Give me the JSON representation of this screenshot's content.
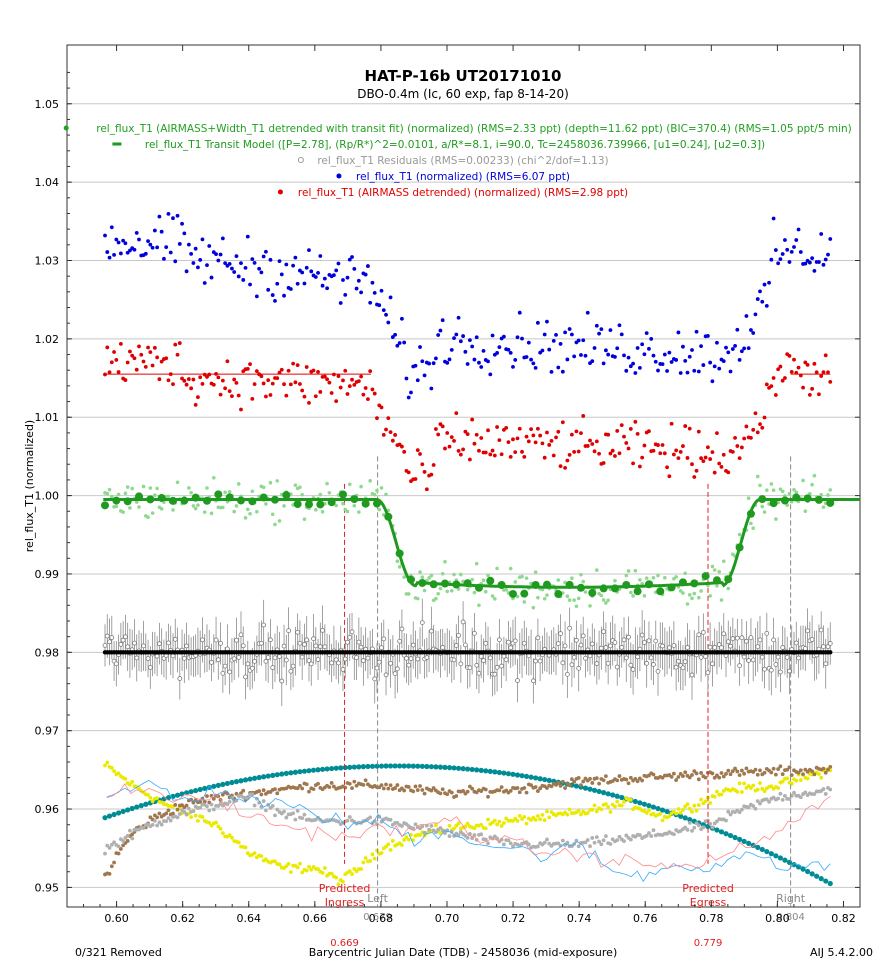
{
  "chart_data": {
    "type": "scatter",
    "title": "HAT-P-16b UT20171010",
    "subtitle": "DBO-0.4m (Ic, 60 exp, fap 8-14-20)",
    "xlabel": "Barycentric Julian Date (TDB) - 2458036 (mid-exposure)",
    "ylabel": "rel_flux_T1 (normalized)",
    "xlim": [
      0.585,
      0.825
    ],
    "ylim": [
      0.9475,
      1.0575
    ],
    "x_ticks": [
      0.6,
      0.62,
      0.64,
      0.66,
      0.68,
      0.7,
      0.72,
      0.74,
      0.76,
      0.78,
      0.8,
      0.82
    ],
    "x_tick_labels": [
      "0.60",
      "0.62",
      "0.64",
      "0.66",
      "0.68",
      "0.70",
      "0.72",
      "0.74",
      "0.76",
      "0.78",
      "0.80",
      "0.82"
    ],
    "y_ticks": [
      0.95,
      0.96,
      0.97,
      0.98,
      0.99,
      1.0,
      1.01,
      1.02,
      1.03,
      1.04,
      1.05
    ],
    "y_tick_labels": [
      "0.95",
      "0.96",
      "0.97",
      "0.98",
      "0.99",
      "1.00",
      "1.01",
      "1.02",
      "1.03",
      "1.04",
      "1.05"
    ],
    "grid": "horizontal",
    "legend": [
      {
        "label": "rel_flux_T1 (AIRMASS+Width_T1 detrended with transit fit) (normalized) (RMS=2.33 ppt) (depth=11.62 ppt) (BIC=370.4) (RMS=1.05 ppt/5 min)",
        "color": "#22a022",
        "marker": "dot"
      },
      {
        "label": "rel_flux_T1 Transit Model ([P=2.78], (Rp/R*)^2=0.0101, a/R*=8.1, i=90.0, Tc=2458036.739966, [u1=0.24], [u2=0.3])",
        "color": "#1f9a1f",
        "marker": "dash"
      },
      {
        "label": "rel_flux_T1 Residuals (RMS=0.00233) (chi^2/dof=1.13)",
        "color": "#999999",
        "marker": "circle"
      },
      {
        "label": "rel_flux_T1 (normalized) (RMS=6.07 ppt)",
        "color": "#0000dd",
        "marker": "dot"
      },
      {
        "label": "rel_flux_T1 (AIRMASS detrended) (normalized) (RMS=2.98 ppt)",
        "color": "#e00000",
        "marker": "dot"
      }
    ],
    "transit_model": {
      "name": "rel_flux_T1 Transit Model",
      "t0": 0.67875,
      "t1": 0.6905,
      "t4": 0.79475,
      "t3": 0.78325,
      "baseline": 0.9995,
      "depth": 0.011
    },
    "blue_series": {
      "name": "rel_flux_T1 (normalized)",
      "noise": 0.004,
      "segments": [
        {
          "x": [
            0.5965,
            0.6205
          ],
          "y": [
            1.0325,
            1.032
          ]
        },
        {
          "x": [
            0.6205,
            0.677
          ],
          "y": [
            1.0305,
            1.027
          ]
        },
        {
          "x": [
            0.677,
            0.688
          ],
          "y": [
            1.027,
            1.017
          ]
        },
        {
          "x": [
            0.688,
            0.696
          ],
          "y": [
            1.0155,
            1.0165
          ]
        },
        {
          "x": [
            0.696,
            0.785
          ],
          "y": [
            1.02,
            1.018
          ]
        },
        {
          "x": [
            0.785,
            0.798
          ],
          "y": [
            1.018,
            1.0255
          ]
        },
        {
          "x": [
            0.798,
            0.816
          ],
          "y": [
            1.031,
            1.031
          ]
        }
      ]
    },
    "red_series": {
      "name": "rel_flux_T1 (AIRMASS detrended) (normalized)",
      "noise": 0.0035,
      "segments": [
        {
          "x": [
            0.5965,
            0.6205
          ],
          "y": [
            1.017,
            1.017
          ]
        },
        {
          "x": [
            0.6205,
            0.677
          ],
          "y": [
            1.015,
            1.014
          ]
        },
        {
          "x": [
            0.677,
            0.688
          ],
          "y": [
            1.013,
            1.004
          ]
        },
        {
          "x": [
            0.688,
            0.696
          ],
          "y": [
            1.0025,
            1.0025
          ]
        },
        {
          "x": [
            0.696,
            0.785
          ],
          "y": [
            1.007,
            1.0055
          ]
        },
        {
          "x": [
            0.785,
            0.798
          ],
          "y": [
            1.005,
            1.011
          ]
        },
        {
          "x": [
            0.798,
            0.816
          ],
          "y": [
            1.016,
            1.0155
          ]
        }
      ]
    },
    "red_fit_lines": [
      {
        "x": [
          0.5965,
          0.677
        ],
        "y": [
          1.0155,
          1.0155
        ]
      },
      {
        "x": [
          0.804,
          0.816
        ],
        "y": [
          1.0155,
          1.0155
        ]
      }
    ],
    "residual_level": 0.98,
    "residual_error": 0.0028,
    "point_count": 321,
    "x_range": [
      0.5965,
      0.816
    ],
    "marker_lines": [
      {
        "x": 0.669,
        "color": "#dd2222",
        "label": "Predicted Ingress",
        "value_label": "0.669"
      },
      {
        "x": 0.679,
        "color": "#888888",
        "label": "Left",
        "value_label": "0.679"
      },
      {
        "x": 0.779,
        "color": "#dd2222",
        "label": "Predicted Egress",
        "value_label": "0.779"
      },
      {
        "x": 0.804,
        "color": "#888888",
        "label": "Right",
        "value_label": "0.804"
      }
    ],
    "aux_series": [
      {
        "name": "teal",
        "color": "#008c95",
        "kind": "curve",
        "peak_x": 0.685,
        "peak_y": 0.9655,
        "left_y": 0.9589,
        "right_y": 0.9505
      },
      {
        "name": "yellow",
        "color": "#eaea00",
        "kind": "points",
        "x": [
          0.597,
          0.605,
          0.615,
          0.63,
          0.64,
          0.65,
          0.66,
          0.668,
          0.675,
          0.68,
          0.69,
          0.7,
          0.72,
          0.74,
          0.755,
          0.765,
          0.775,
          0.785,
          0.8,
          0.816
        ],
        "y": [
          0.9655,
          0.963,
          0.9605,
          0.958,
          0.9545,
          0.9525,
          0.9525,
          0.9508,
          0.953,
          0.955,
          0.9565,
          0.9575,
          0.9585,
          0.9595,
          0.9608,
          0.959,
          0.9605,
          0.9625,
          0.963,
          0.965
        ]
      },
      {
        "name": "brown",
        "color": "#a07850",
        "kind": "points",
        "x": [
          0.597,
          0.6,
          0.605,
          0.612,
          0.62,
          0.63,
          0.64,
          0.65,
          0.66,
          0.68,
          0.7,
          0.72,
          0.74,
          0.76,
          0.78,
          0.8,
          0.816
        ],
        "y": [
          0.9515,
          0.954,
          0.957,
          0.959,
          0.9605,
          0.9615,
          0.962,
          0.9625,
          0.963,
          0.963,
          0.962,
          0.9625,
          0.9635,
          0.964,
          0.9645,
          0.9648,
          0.965
        ]
      },
      {
        "name": "gray",
        "color": "#b0b0b0",
        "kind": "points",
        "x": [
          0.597,
          0.61,
          0.62,
          0.64,
          0.65,
          0.66,
          0.68,
          0.7,
          0.72,
          0.74,
          0.76,
          0.78,
          0.79,
          0.8,
          0.816
        ],
        "y": [
          0.955,
          0.958,
          0.9595,
          0.9615,
          0.9595,
          0.9585,
          0.9585,
          0.957,
          0.9555,
          0.9555,
          0.9565,
          0.958,
          0.96,
          0.9615,
          0.9625
        ]
      },
      {
        "name": "cyan",
        "color": "#33aaff",
        "kind": "line",
        "x": [
          0.597,
          0.61,
          0.62,
          0.63,
          0.64,
          0.65,
          0.66,
          0.67,
          0.68,
          0.69,
          0.7,
          0.71,
          0.72,
          0.73,
          0.74,
          0.75,
          0.76,
          0.77,
          0.78,
          0.79,
          0.8,
          0.81,
          0.816
        ],
        "y": [
          0.961,
          0.9635,
          0.961,
          0.9625,
          0.961,
          0.9605,
          0.9595,
          0.958,
          0.9585,
          0.956,
          0.9575,
          0.9555,
          0.955,
          0.954,
          0.9555,
          0.952,
          0.9515,
          0.953,
          0.9525,
          0.9545,
          0.9525,
          0.953,
          0.9525
        ]
      },
      {
        "name": "pink",
        "color": "#ff8888",
        "kind": "line",
        "x": [
          0.597,
          0.61,
          0.62,
          0.63,
          0.64,
          0.65,
          0.66,
          0.67,
          0.68,
          0.69,
          0.7,
          0.71,
          0.72,
          0.73,
          0.74,
          0.75,
          0.76,
          0.77,
          0.78,
          0.79,
          0.8,
          0.81,
          0.816
        ],
        "y": [
          0.962,
          0.9625,
          0.961,
          0.9615,
          0.959,
          0.958,
          0.957,
          0.9565,
          0.9575,
          0.957,
          0.959,
          0.9565,
          0.9555,
          0.9545,
          0.954,
          0.9535,
          0.953,
          0.9525,
          0.9535,
          0.955,
          0.957,
          0.96,
          0.9615
        ]
      }
    ]
  },
  "footer": {
    "left": "0/321 Removed",
    "right": "AIJ 5.4.2.00"
  }
}
